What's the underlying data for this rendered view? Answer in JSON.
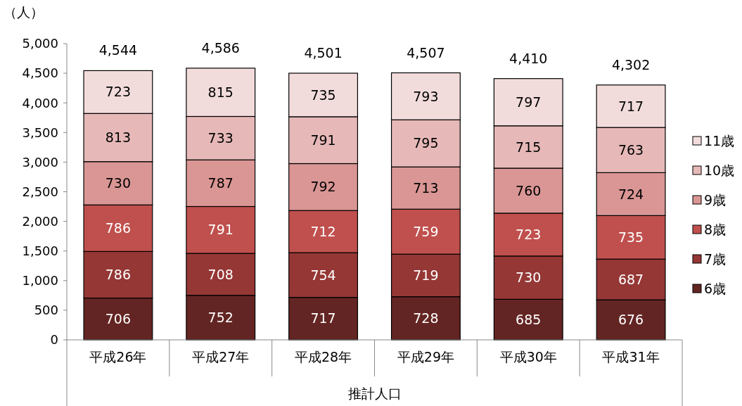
{
  "chart_data": {
    "type": "bar",
    "stacked": true,
    "ylabel": "（人）",
    "xlabel": "推計人口",
    "categories": [
      "平成26年",
      "平成27年",
      "平成28年",
      "平成29年",
      "平成30年",
      "平成31年"
    ],
    "series": [
      {
        "name": "6歳",
        "color": "#632523",
        "values": [
          706,
          752,
          717,
          728,
          685,
          676
        ]
      },
      {
        "name": "7歳",
        "color": "#953735",
        "values": [
          786,
          708,
          754,
          719,
          730,
          687
        ]
      },
      {
        "name": "8歳",
        "color": "#c0504d",
        "values": [
          786,
          791,
          712,
          759,
          723,
          735
        ]
      },
      {
        "name": "9歳",
        "color": "#d99694",
        "values": [
          730,
          787,
          792,
          713,
          760,
          724
        ]
      },
      {
        "name": "10歳",
        "color": "#e6b9b8",
        "values": [
          813,
          733,
          791,
          795,
          715,
          763
        ]
      },
      {
        "name": "11歳",
        "color": "#f2dcdb",
        "values": [
          723,
          815,
          735,
          793,
          797,
          717
        ]
      }
    ],
    "totals": [
      "4,544",
      "4,586",
      "4,501",
      "4,507",
      "4,410",
      "4,302"
    ],
    "ylim": [
      0,
      5000
    ],
    "yticks": [
      {
        "value": 0,
        "label": "0"
      },
      {
        "value": 500,
        "label": "500"
      },
      {
        "value": 1000,
        "label": "1,000"
      },
      {
        "value": 1500,
        "label": "1,500"
      },
      {
        "value": 2000,
        "label": "2,000"
      },
      {
        "value": 2500,
        "label": "2,500"
      },
      {
        "value": 3000,
        "label": "3,000"
      },
      {
        "value": 3500,
        "label": "3,500"
      },
      {
        "value": 4000,
        "label": "4,000"
      },
      {
        "value": 4500,
        "label": "4,500"
      },
      {
        "value": 5000,
        "label": "5,000"
      }
    ],
    "data_labels": true,
    "legend": "right",
    "grid": false
  }
}
